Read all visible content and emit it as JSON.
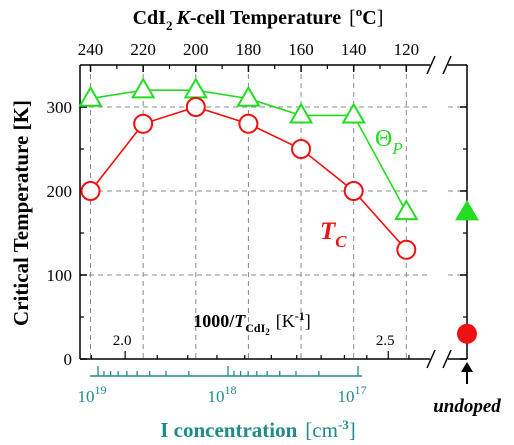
{
  "chart_data": {
    "type": "line",
    "top_axis": {
      "label_main": "CdI",
      "label_sub": "2",
      "label_italic": "K",
      "label_rest": "-cell Temperature",
      "unit_open": "[",
      "unit_sup": "o",
      "unit_body": "C",
      "unit_close": "]",
      "range": [
        244,
        111
      ],
      "ticks": [
        "240",
        "220",
        "200",
        "180",
        "160",
        "140",
        "120"
      ],
      "tick_values": [
        240,
        220,
        200,
        180,
        160,
        140,
        120
      ]
    },
    "y_axis": {
      "label": "Critical Temperature [K]",
      "ylim": [
        0,
        350
      ],
      "ticks": [
        "0",
        "100",
        "200",
        "300"
      ],
      "tick_values": [
        0,
        100,
        200,
        300
      ],
      "grid": true
    },
    "inner_axis": {
      "label_main": "1000/",
      "label_T": "T",
      "label_sub": "CdI",
      "label_sub2": "2",
      "unit_open": "[K",
      "unit_sup": "-1",
      "unit_close": "]",
      "ticks": [
        "2.0",
        "2.5"
      ],
      "tick_values": [
        2.0,
        2.5
      ]
    },
    "bottom_axis": {
      "label": "I concentration",
      "unit_open": "[cm",
      "unit_sup": "-3",
      "unit_close": "]",
      "ticks": [
        {
          "base": "10",
          "exp": "19"
        },
        {
          "base": "10",
          "exp": "18"
        },
        {
          "base": "10",
          "exp": "17"
        }
      ],
      "tick_values": [
        1e+19,
        1e+18,
        1e+17
      ],
      "color": "#1f8b8b"
    },
    "series": [
      {
        "name": "Θ",
        "name_sub": "P",
        "marker": "triangle",
        "color": "#22dd22",
        "x": [
          240,
          220,
          200,
          180,
          160,
          140,
          120
        ],
        "y": [
          310,
          320,
          320,
          310,
          290,
          290,
          175
        ]
      },
      {
        "name": "T",
        "name_sub": "C",
        "marker": "circle",
        "color": "#ee1111",
        "x": [
          240,
          220,
          200,
          180,
          160,
          140,
          120
        ],
        "y": [
          200,
          280,
          300,
          280,
          250,
          200,
          130
        ]
      }
    ],
    "undoped": {
      "label": "undoped",
      "values": [
        {
          "series": "Θ",
          "marker": "triangle-filled",
          "color": "#22dd22",
          "y": 175
        },
        {
          "series": "T",
          "marker": "circle-filled",
          "color": "#ee1111",
          "y": 30
        }
      ]
    }
  }
}
